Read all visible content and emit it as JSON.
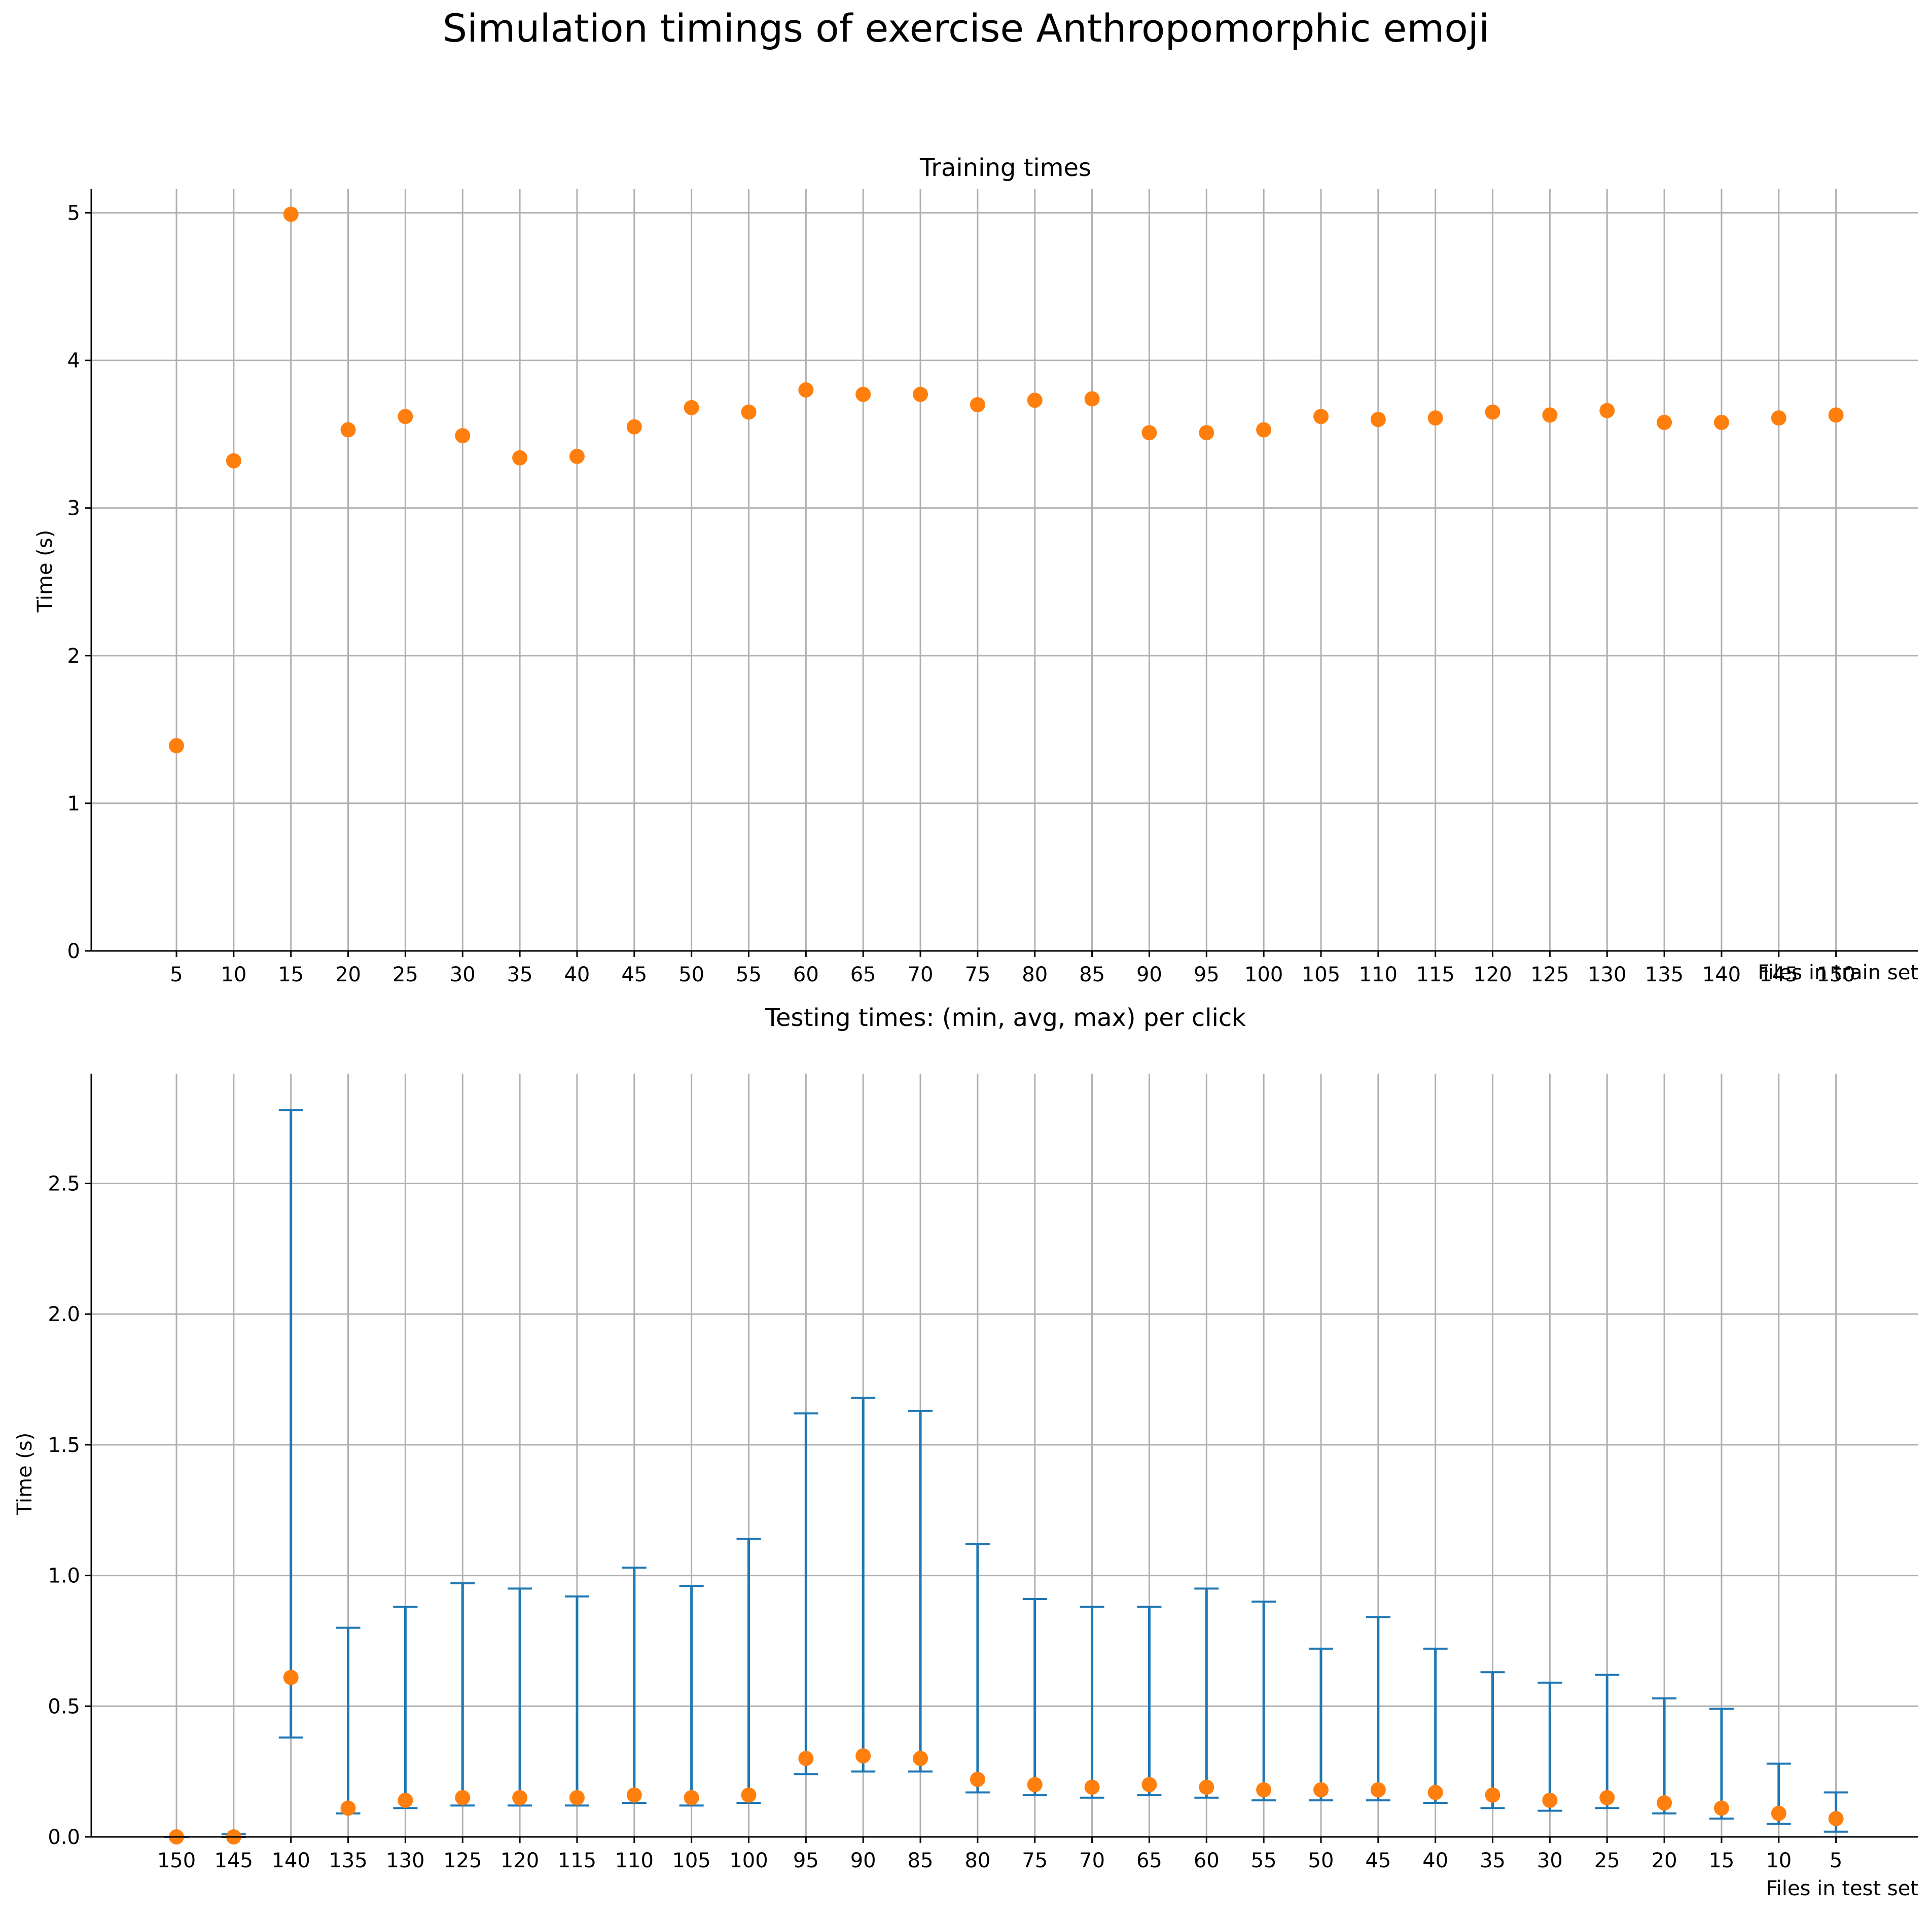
{
  "figure": {
    "title": "Simulation timings of exercise Anthropomorphic emoji"
  },
  "colors": {
    "point": "#ff7f0e",
    "errorbar": "#1f77b4",
    "grid": "#b0b0b0",
    "axis": "#000000"
  },
  "chart_data": [
    {
      "type": "scatter",
      "title": "Training times",
      "xlabel": "Files in train set",
      "ylabel": "Time (s)",
      "grid": true,
      "categories": [
        "5",
        "10",
        "15",
        "20",
        "25",
        "30",
        "35",
        "40",
        "45",
        "50",
        "55",
        "60",
        "65",
        "70",
        "75",
        "80",
        "85",
        "90",
        "95",
        "100",
        "105",
        "110",
        "115",
        "120",
        "125",
        "130",
        "135",
        "140",
        "145",
        "150"
      ],
      "values": [
        1.39,
        3.32,
        4.99,
        3.53,
        3.62,
        3.49,
        3.34,
        3.35,
        3.55,
        3.68,
        3.65,
        3.8,
        3.77,
        3.77,
        3.7,
        3.73,
        3.74,
        3.51,
        3.51,
        3.53,
        3.62,
        3.6,
        3.61,
        3.65,
        3.63,
        3.66,
        3.58,
        3.58,
        3.61,
        3.63
      ],
      "ylim": [
        0,
        5.16
      ],
      "yticks": [
        0,
        1,
        2,
        3,
        4,
        5
      ]
    },
    {
      "type": "errorbar",
      "title": "Testing times: (min, avg, max) per click",
      "xlabel": "Files in test set",
      "ylabel": "Time (s)",
      "grid": true,
      "categories": [
        "150",
        "145",
        "140",
        "135",
        "130",
        "125",
        "120",
        "115",
        "110",
        "105",
        "100",
        "95",
        "90",
        "85",
        "80",
        "75",
        "70",
        "65",
        "60",
        "55",
        "50",
        "45",
        "40",
        "35",
        "30",
        "25",
        "20",
        "15",
        "10",
        "5"
      ],
      "avg": [
        0.0,
        0.0,
        0.61,
        0.11,
        0.14,
        0.15,
        0.15,
        0.15,
        0.16,
        0.15,
        0.16,
        0.3,
        0.31,
        0.3,
        0.22,
        0.2,
        0.19,
        0.2,
        0.19,
        0.18,
        0.18,
        0.18,
        0.17,
        0.16,
        0.14,
        0.15,
        0.13,
        0.11,
        0.09,
        0.07
      ],
      "min": [
        0.0,
        0.0,
        0.38,
        0.09,
        0.11,
        0.12,
        0.12,
        0.12,
        0.13,
        0.12,
        0.13,
        0.24,
        0.25,
        0.25,
        0.17,
        0.16,
        0.15,
        0.16,
        0.15,
        0.14,
        0.14,
        0.14,
        0.13,
        0.11,
        0.1,
        0.11,
        0.09,
        0.07,
        0.05,
        0.02
      ],
      "max": [
        0.0,
        0.01,
        2.78,
        0.8,
        0.88,
        0.97,
        0.95,
        0.92,
        1.03,
        0.96,
        1.14,
        1.62,
        1.68,
        1.63,
        1.12,
        0.91,
        0.88,
        0.88,
        0.95,
        0.9,
        0.72,
        0.84,
        0.72,
        0.63,
        0.59,
        0.62,
        0.53,
        0.49,
        0.28,
        0.17
      ],
      "ylim": [
        0,
        2.92
      ],
      "yticks": [
        0.0,
        0.5,
        1.0,
        1.5,
        2.0,
        2.5
      ],
      "ytick_labels": [
        "0.0",
        "0.5",
        "1.0",
        "1.5",
        "2.0",
        "2.5"
      ]
    }
  ]
}
